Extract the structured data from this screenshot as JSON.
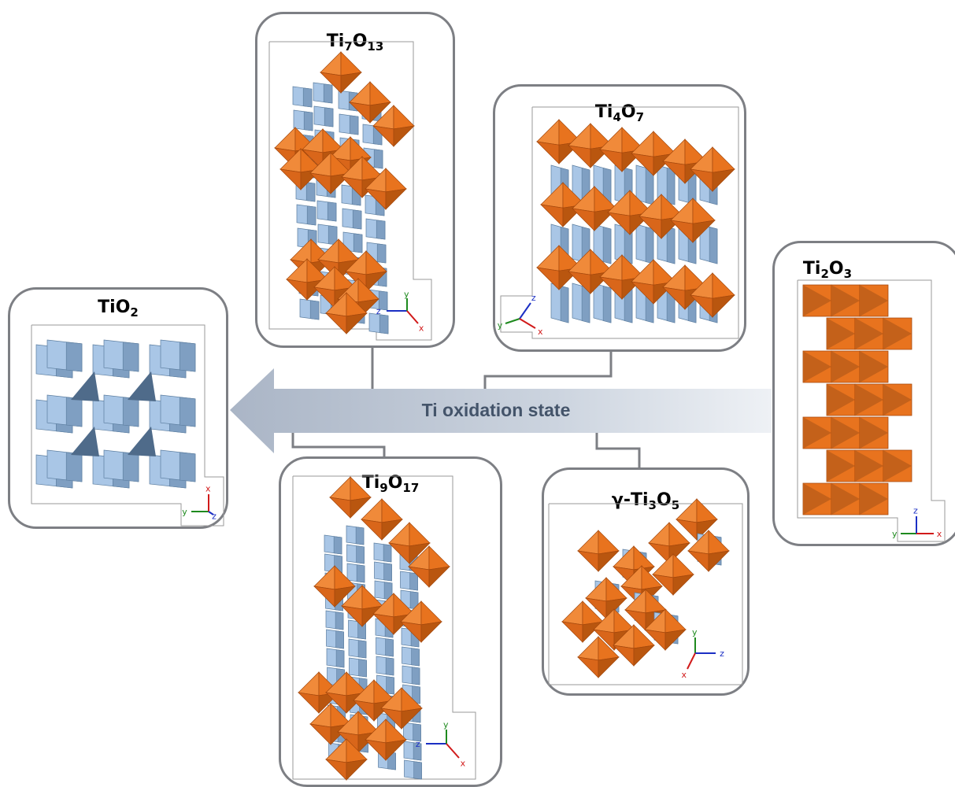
{
  "arrow_label": "Ti oxidation state",
  "colors": {
    "ti_octahedra": "#e8731e",
    "ti_octahedra_dark": "#a5480c",
    "blue_octahedra": "#a9c6e6",
    "blue_octahedra_dark": "#5b7d9f",
    "panel_border": "#7d7f84",
    "arrow": "#b3bdcc",
    "arrow_text": "#44546a",
    "axis_x": "#d11a1a",
    "axis_y": "#1e8a1e",
    "axis_z": "#1b2fc4"
  },
  "structures": [
    {
      "id": "TiO2",
      "title": "TiO",
      "sub1": "2",
      "mid": "",
      "sub2": "",
      "axes": [
        "y",
        "x",
        "z"
      ]
    },
    {
      "id": "Ti7O13",
      "title": "Ti",
      "sub1": "7",
      "mid": "O",
      "sub2": "13",
      "axes": [
        "z",
        "y",
        "x"
      ]
    },
    {
      "id": "Ti4O7",
      "title": "Ti",
      "sub1": "4",
      "mid": "O",
      "sub2": "7",
      "axes": [
        "y",
        "z",
        "x"
      ]
    },
    {
      "id": "Ti2O3",
      "title": "Ti",
      "sub1": "2",
      "mid": "O",
      "sub2": "3",
      "axes": [
        "y",
        "z",
        "x"
      ]
    },
    {
      "id": "Ti9O17",
      "title": "Ti",
      "sub1": "9",
      "mid": "O",
      "sub2": "17",
      "axes": [
        "z",
        "y",
        "x"
      ]
    },
    {
      "id": "gTi3O5",
      "title": "γ-Ti",
      "sub1": "3",
      "mid": "O",
      "sub2": "5",
      "axes": [
        "y",
        "z",
        "x"
      ]
    }
  ]
}
